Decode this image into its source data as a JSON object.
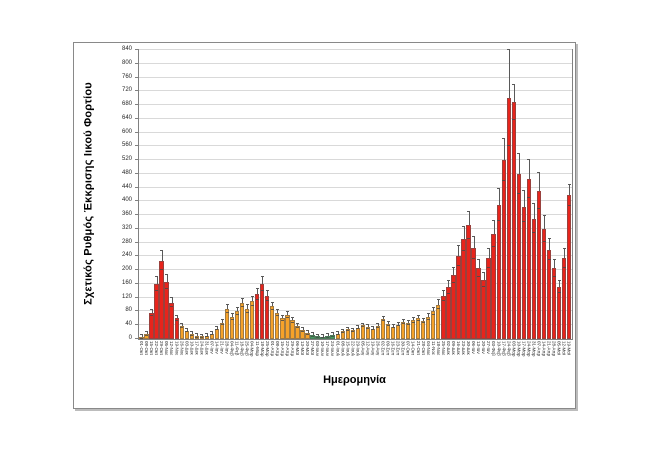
{
  "figure": {
    "y_axis_title": "Σχετικός Ρυθμός Έκκρισης Ιικού Φορτίου",
    "x_axis_title": "Ημερομηνία"
  },
  "colors": {
    "red": "#E8241C",
    "orange": "#F6A229",
    "green": "#3FA45B",
    "whisker": "#595959",
    "grid": "#d9d9d9",
    "frame_border": "#898989",
    "plot_border": "#808080"
  },
  "chart_data": {
    "type": "bar",
    "title": "",
    "ylabel": "Σχετικός Ρυθμός Έκκρισης Ιικού Φορτίου",
    "xlabel": "Ημερομηνία",
    "ylim": [
      0,
      840
    ],
    "ytick_step": 40,
    "grid": true,
    "legend_position": "none",
    "error_bars": true,
    "categories": [
      "01-Οκτ",
      "08-Οκτ",
      "15-Οκτ",
      "22-Οκτ",
      "29-Οκτ",
      "05-Νοε",
      "12-Νοε",
      "19-Νοε",
      "26-Νοε",
      "03-Δεκ",
      "10-Δεκ",
      "17-Δεκ",
      "24-Δεκ",
      "31-Δεκ",
      "07-Ιαν",
      "14-Ιαν",
      "21-Ιαν",
      "28-Ιαν",
      "04-Φεβ",
      "11-Φεβ",
      "18-Φεβ",
      "25-Φεβ",
      "04-Μαρ",
      "11-Μαρ",
      "18-Μαρ",
      "25-Μαρ",
      "01-Απρ",
      "08-Απρ",
      "15-Απρ",
      "22-Απρ",
      "29-Απρ",
      "06-Μαϊ",
      "13-Μαϊ",
      "20-Μαϊ",
      "27-Μαϊ",
      "03-Ιουν",
      "10-Ιουν",
      "17-Ιουν",
      "24-Ιουν",
      "01-Ιουλ",
      "08-Ιουλ",
      "15-Ιουλ",
      "22-Ιουλ",
      "29-Ιουλ",
      "05-Αυγ",
      "12-Αυγ",
      "19-Αυγ",
      "26-Αυγ",
      "02-Σεπ",
      "09-Σεπ",
      "16-Σεπ",
      "23-Σεπ",
      "30-Σεπ",
      "07-Οκτ",
      "14-Οκτ",
      "21-Οκτ",
      "28-Οκτ",
      "04-Νοε",
      "11-Νοε",
      "18-Νοε",
      "25-Νοε",
      "02-Δεκ",
      "09-Δεκ",
      "16-Δεκ",
      "23-Δεκ",
      "30-Δεκ",
      "06-Ιαν",
      "13-Ιαν",
      "20-Ιαν",
      "27-Ιαν",
      "03-Φεβ",
      "10-Φεβ",
      "17-Φεβ",
      "24-Φεβ",
      "03-Μαρ",
      "10-Μαρ",
      "17-Μαρ",
      "24-Μαρ",
      "31-Μαρ",
      "07-Απρ",
      "14-Απρ",
      "21-Απρ",
      "28-Απρ",
      "05-Μαϊ",
      "12-Μαϊ",
      "19-Μαϊ"
    ],
    "series": [
      {
        "name": "Σχετικός Ρυθμός Έκκρισης Ιικού Φορτίου",
        "values": [
          6,
          15,
          75,
          160,
          228,
          165,
          105,
          60,
          38,
          24,
          14,
          9,
          8,
          10,
          16,
          30,
          48,
          88,
          64,
          80,
          104,
          88,
          110,
          130,
          160,
          125,
          95,
          76,
          60,
          70,
          54,
          38,
          26,
          18,
          12,
          8,
          7,
          9,
          12,
          16,
          22,
          28,
          25,
          33,
          40,
          35,
          30,
          38,
          58,
          44,
          36,
          42,
          50,
          46,
          55,
          60,
          52,
          64,
          80,
          100,
          125,
          150,
          185,
          240,
          290,
          330,
          265,
          205,
          172,
          235,
          305,
          390,
          520,
          700,
          688,
          480,
          385,
          465,
          350,
          430,
          320,
          260,
          205,
          152,
          235,
          418
        ],
        "colors": [
          "orange",
          "orange",
          "red",
          "red",
          "red",
          "red",
          "red",
          "red",
          "orange",
          "orange",
          "orange",
          "orange",
          "orange",
          "orange",
          "orange",
          "orange",
          "orange",
          "orange",
          "orange",
          "orange",
          "orange",
          "orange",
          "orange",
          "red",
          "red",
          "red",
          "orange",
          "orange",
          "orange",
          "orange",
          "orange",
          "orange",
          "orange",
          "orange",
          "green",
          "green",
          "green",
          "green",
          "green",
          "orange",
          "orange",
          "orange",
          "orange",
          "orange",
          "orange",
          "orange",
          "orange",
          "orange",
          "orange",
          "orange",
          "orange",
          "orange",
          "orange",
          "orange",
          "orange",
          "orange",
          "orange",
          "orange",
          "orange",
          "orange",
          "red",
          "red",
          "red",
          "red",
          "red",
          "red",
          "red",
          "red",
          "red",
          "red",
          "red",
          "red",
          "red",
          "red",
          "red",
          "red",
          "red",
          "red",
          "red",
          "red",
          "red",
          "red",
          "red",
          "red",
          "red",
          "red"
        ],
        "errors": [
          5,
          5,
          9,
          19,
          27,
          20,
          13,
          7,
          5,
          5,
          5,
          5,
          5,
          5,
          5,
          5,
          6,
          11,
          8,
          10,
          12,
          11,
          13,
          16,
          19,
          15,
          11,
          9,
          7,
          8,
          6,
          5,
          5,
          5,
          5,
          5,
          5,
          5,
          5,
          5,
          5,
          5,
          5,
          5,
          5,
          5,
          5,
          5,
          7,
          5,
          5,
          5,
          6,
          6,
          7,
          7,
          6,
          8,
          10,
          12,
          15,
          18,
          22,
          29,
          35,
          40,
          32,
          25,
          21,
          28,
          37,
          47,
          62,
          140,
          50,
          58,
          46,
          56,
          42,
          52,
          38,
          31,
          25,
          18,
          28,
          30
        ]
      }
    ]
  }
}
